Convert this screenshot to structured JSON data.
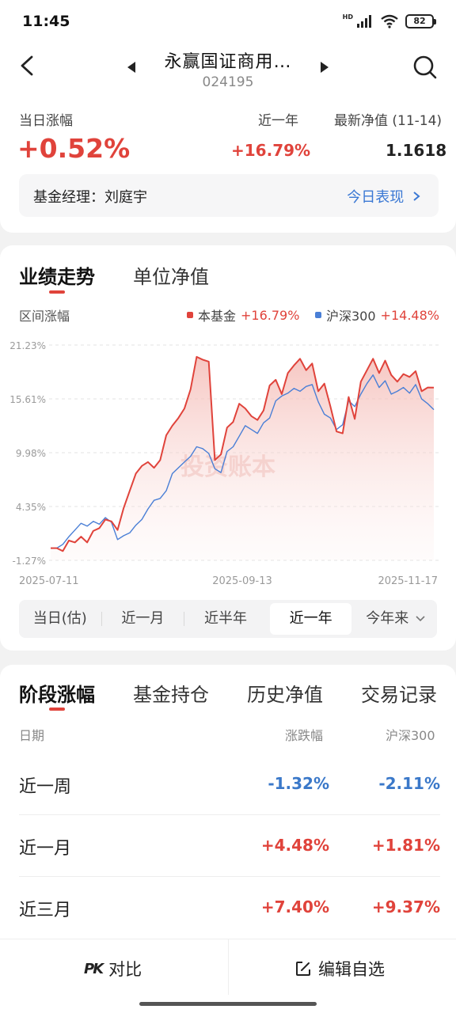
{
  "status": {
    "time": "11:45",
    "battery": "82",
    "hd_label": "HD"
  },
  "header": {
    "fund_name": "永赢国证商用…",
    "fund_code": "024195"
  },
  "summary": {
    "day_change_label": "当日涨幅",
    "day_change_value": "+0.52%",
    "year_label": "近一年",
    "year_value": "+16.79%",
    "nav_label": "最新净值 (11-14)",
    "nav_value": "1.1618",
    "manager_text": "基金经理：刘庭宇",
    "today_link": "今日表现"
  },
  "chart_section": {
    "tabs": [
      "业绩走势",
      "单位净值"
    ],
    "range_label": "区间涨幅",
    "watermark": "投资账本",
    "periods": [
      "当日(估)",
      "近一月",
      "近半年",
      "近一年",
      "今年来"
    ],
    "selected_period": "近一年"
  },
  "chart_data": {
    "type": "line",
    "title": "",
    "xlabel": "",
    "ylabel": "",
    "x_tick_labels": [
      "2025-07-11",
      "2025-09-13",
      "2025-11-17"
    ],
    "y_tick_labels": [
      "21.23%",
      "15.61%",
      "9.98%",
      "4.35%",
      "-1.27%"
    ],
    "ylim": [
      -1.27,
      21.23
    ],
    "grid": true,
    "legend_position": "top-right",
    "series": [
      {
        "name": "本基金",
        "legend_value": "+16.79%",
        "color": "#e0433b",
        "values": [
          0.0,
          0.0,
          -0.3,
          0.8,
          0.6,
          1.2,
          0.6,
          1.8,
          2.1,
          3.0,
          2.8,
          1.9,
          4.2,
          6.0,
          7.8,
          8.6,
          9.0,
          8.4,
          9.2,
          11.8,
          12.8,
          13.6,
          14.6,
          16.6,
          20.0,
          19.7,
          19.5,
          9.2,
          9.8,
          12.6,
          13.2,
          15.1,
          14.6,
          13.8,
          13.4,
          14.4,
          17.0,
          17.6,
          16.1,
          18.3,
          19.1,
          19.8,
          18.6,
          19.3,
          16.4,
          17.2,
          14.8,
          12.2,
          12.0,
          15.8,
          13.5,
          17.4,
          18.6,
          19.8,
          18.3,
          19.6,
          18.1,
          17.4,
          18.2,
          17.9,
          18.5,
          16.4,
          16.8,
          16.79
        ],
        "fill": true
      },
      {
        "name": "沪深300",
        "legend_value": "+14.48%",
        "color": "#4a7fd6",
        "values": [
          0.0,
          0.0,
          0.4,
          1.2,
          1.9,
          2.6,
          2.3,
          2.8,
          2.5,
          3.2,
          2.7,
          0.9,
          1.3,
          1.6,
          2.4,
          3.0,
          4.1,
          5.0,
          5.2,
          6.0,
          7.8,
          8.4,
          9.0,
          9.6,
          10.6,
          10.4,
          9.9,
          8.3,
          7.9,
          10.1,
          10.6,
          11.7,
          12.8,
          12.4,
          12.0,
          13.1,
          13.6,
          15.4,
          15.9,
          16.2,
          16.7,
          16.4,
          16.9,
          17.1,
          15.3,
          14.0,
          13.6,
          12.4,
          12.9,
          15.4,
          14.8,
          16.1,
          17.2,
          18.1,
          16.8,
          17.5,
          16.1,
          16.4,
          16.8,
          16.2,
          17.1,
          15.6,
          15.1,
          14.48
        ],
        "fill": false
      }
    ]
  },
  "stage_section": {
    "tabs": [
      "阶段涨幅",
      "基金持仓",
      "历史净值",
      "交易记录"
    ],
    "col_date": "日期",
    "col_change": "涨跌幅",
    "col_index": "沪深300",
    "rows": [
      {
        "period": "近一周",
        "change": "-1.32%",
        "index": "-2.11%"
      },
      {
        "period": "近一月",
        "change": "+4.48%",
        "index": "+1.81%"
      },
      {
        "period": "近三月",
        "change": "+7.40%",
        "index": "+9.37%"
      }
    ]
  },
  "bottom_bar": {
    "compare_label": "对比",
    "compare_icon": "PK",
    "edit_label": "编辑自选"
  },
  "colors": {
    "up": "#e0433b",
    "down": "#3a78c9",
    "link": "#3a78d4"
  }
}
